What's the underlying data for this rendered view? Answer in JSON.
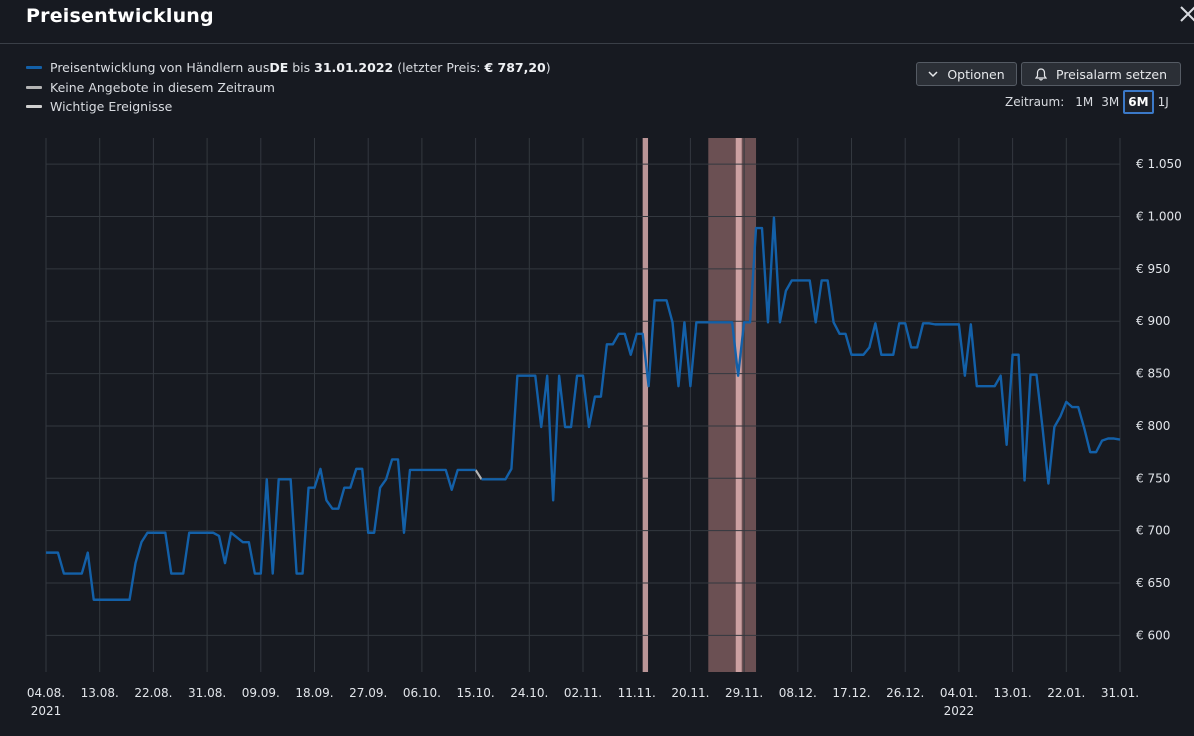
{
  "header": {
    "title": "Preisentwicklung",
    "close_icon": "close-icon"
  },
  "legend": {
    "line_pre": "Preisentwicklung von Händlern aus ",
    "country": "DE",
    "line_mid": " bis ",
    "date": "31.01.2022",
    "line_post": " (letzter Preis: ",
    "last_price": "€ 787,20",
    "line_end": ")",
    "no_offers": "Keine Angebote in diesem Zeitraum",
    "events": "Wichtige Ereignisse"
  },
  "toolbar": {
    "options_label": "Optionen",
    "alarm_label": "Preisalarm setzen"
  },
  "range": {
    "label": "Zeitraum:",
    "options": [
      "1M",
      "3M",
      "6M",
      "1J"
    ],
    "selected": "6M"
  },
  "colors": {
    "line": "#1360a8",
    "no_offers": "#b4b4b4",
    "events": "#d0d0d0",
    "band_light": "#e8b8b8",
    "band_dark": "#7a5a5c",
    "grid": "#33383f"
  },
  "chart_data": {
    "type": "line",
    "y_ticks": [
      "€ 600",
      "€ 650",
      "€ 700",
      "€ 750",
      "€ 800",
      "€ 850",
      "€ 900",
      "€ 950",
      "€ 1.000",
      "€ 1.050"
    ],
    "y_values": [
      600,
      650,
      700,
      750,
      800,
      850,
      900,
      950,
      1000,
      1050
    ],
    "ylim": [
      565,
      1075
    ],
    "x_ticks": [
      "04.08.",
      "13.08.",
      "22.08.",
      "31.08.",
      "09.09.",
      "18.09.",
      "27.09.",
      "06.10.",
      "15.10.",
      "24.10.",
      "02.11.",
      "11.11.",
      "20.11.",
      "29.11.",
      "08.12.",
      "17.12.",
      "26.12.",
      "04.01.",
      "13.01.",
      "22.01.",
      "31.01."
    ],
    "x_tick_dates": [
      "2021-08-04",
      "2021-08-13",
      "2021-08-22",
      "2021-08-31",
      "2021-09-09",
      "2021-09-18",
      "2021-09-27",
      "2021-10-06",
      "2021-10-15",
      "2021-10-24",
      "2021-11-02",
      "2021-11-11",
      "2021-11-20",
      "2021-11-29",
      "2021-12-08",
      "2021-12-17",
      "2021-12-26",
      "2022-01-04",
      "2022-01-13",
      "2022-01-22",
      "2022-01-31"
    ],
    "year_labels": [
      {
        "date": "2021-08-04",
        "label": "2021"
      },
      {
        "date": "2022-01-04",
        "label": "2022"
      }
    ],
    "xlim": [
      "2021-08-04",
      "2022-01-31"
    ],
    "grid": true,
    "series": [
      {
        "name": "Preisentwicklung",
        "points": [
          [
            "2021-08-04",
            679
          ],
          [
            "2021-08-06",
            679
          ],
          [
            "2021-08-07",
            659
          ],
          [
            "2021-08-10",
            659
          ],
          [
            "2021-08-11",
            679
          ],
          [
            "2021-08-12",
            634
          ],
          [
            "2021-08-18",
            634
          ],
          [
            "2021-08-19",
            669
          ],
          [
            "2021-08-20",
            689
          ],
          [
            "2021-08-21",
            698
          ],
          [
            "2021-08-24",
            698
          ],
          [
            "2021-08-25",
            659
          ],
          [
            "2021-08-27",
            659
          ],
          [
            "2021-08-28",
            698
          ],
          [
            "2021-09-01",
            698
          ],
          [
            "2021-09-02",
            695
          ],
          [
            "2021-09-03",
            669
          ],
          [
            "2021-09-04",
            698
          ],
          [
            "2021-09-06",
            689
          ],
          [
            "2021-09-07",
            689
          ],
          [
            "2021-09-08",
            659
          ],
          [
            "2021-09-09",
            659
          ],
          [
            "2021-09-10",
            749
          ],
          [
            "2021-09-11",
            659
          ],
          [
            "2021-09-12",
            749
          ],
          [
            "2021-09-14",
            749
          ],
          [
            "2021-09-15",
            659
          ],
          [
            "2021-09-16",
            659
          ],
          [
            "2021-09-17",
            741
          ],
          [
            "2021-09-18",
            741
          ],
          [
            "2021-09-19",
            759
          ],
          [
            "2021-09-20",
            729
          ],
          [
            "2021-09-21",
            721
          ],
          [
            "2021-09-22",
            721
          ],
          [
            "2021-09-23",
            741
          ],
          [
            "2021-09-24",
            741
          ],
          [
            "2021-09-25",
            759
          ],
          [
            "2021-09-26",
            759
          ],
          [
            "2021-09-27",
            698
          ],
          [
            "2021-09-28",
            698
          ],
          [
            "2021-09-29",
            741
          ],
          [
            "2021-09-30",
            749
          ],
          [
            "2021-10-01",
            768
          ],
          [
            "2021-10-02",
            768
          ],
          [
            "2021-10-03",
            698
          ],
          [
            "2021-10-04",
            758
          ],
          [
            "2021-10-10",
            758
          ],
          [
            "2021-10-11",
            739
          ],
          [
            "2021-10-12",
            758
          ],
          [
            "2021-10-15",
            758
          ]
        ]
      },
      {
        "name": "Preisentwicklung",
        "points": [
          [
            "2021-10-16",
            749
          ],
          [
            "2021-10-20",
            749
          ],
          [
            "2021-10-21",
            759
          ],
          [
            "2021-10-22",
            848
          ],
          [
            "2021-10-25",
            848
          ],
          [
            "2021-10-26",
            799
          ],
          [
            "2021-10-27",
            848
          ],
          [
            "2021-10-28",
            729
          ],
          [
            "2021-10-29",
            848
          ],
          [
            "2021-10-30",
            799
          ],
          [
            "2021-10-31",
            799
          ],
          [
            "2021-11-01",
            848
          ],
          [
            "2021-11-02",
            848
          ],
          [
            "2021-11-03",
            799
          ],
          [
            "2021-11-04",
            828
          ],
          [
            "2021-11-05",
            828
          ],
          [
            "2021-11-06",
            878
          ],
          [
            "2021-11-07",
            878
          ],
          [
            "2021-11-08",
            888
          ],
          [
            "2021-11-09",
            888
          ],
          [
            "2021-11-10",
            868
          ],
          [
            "2021-11-11",
            888
          ],
          [
            "2021-11-12",
            888
          ],
          [
            "2021-11-13",
            838
          ],
          [
            "2021-11-14",
            920
          ],
          [
            "2021-11-16",
            920
          ],
          [
            "2021-11-17",
            899
          ],
          [
            "2021-11-18",
            838
          ],
          [
            "2021-11-19",
            899
          ],
          [
            "2021-11-20",
            838
          ],
          [
            "2021-11-21",
            899
          ],
          [
            "2021-11-22",
            899
          ],
          [
            "2021-11-23",
            899
          ],
          [
            "2021-11-27",
            899
          ],
          [
            "2021-11-28",
            848
          ],
          [
            "2021-11-29",
            899
          ],
          [
            "2021-11-30",
            899
          ],
          [
            "2021-12-01",
            989
          ],
          [
            "2021-12-02",
            989
          ],
          [
            "2021-12-03",
            899
          ],
          [
            "2021-12-04",
            999
          ],
          [
            "2021-12-05",
            899
          ],
          [
            "2021-12-06",
            929
          ],
          [
            "2021-12-07",
            939
          ],
          [
            "2021-12-10",
            939
          ],
          [
            "2021-12-11",
            899
          ],
          [
            "2021-12-12",
            939
          ],
          [
            "2021-12-13",
            939
          ],
          [
            "2021-12-14",
            899
          ],
          [
            "2021-12-15",
            888
          ],
          [
            "2021-12-16",
            888
          ],
          [
            "2021-12-17",
            868
          ],
          [
            "2021-12-19",
            868
          ],
          [
            "2021-12-20",
            875
          ],
          [
            "2021-12-21",
            898
          ],
          [
            "2021-12-22",
            868
          ],
          [
            "2021-12-24",
            868
          ],
          [
            "2021-12-25",
            898
          ],
          [
            "2021-12-26",
            898
          ],
          [
            "2021-12-27",
            875
          ],
          [
            "2021-12-28",
            875
          ],
          [
            "2021-12-29",
            898
          ],
          [
            "2021-12-30",
            898
          ],
          [
            "2021-12-31",
            897
          ],
          [
            "2022-01-04",
            897
          ],
          [
            "2022-01-05",
            848
          ],
          [
            "2022-01-06",
            897
          ],
          [
            "2022-01-07",
            838
          ],
          [
            "2022-01-10",
            838
          ],
          [
            "2022-01-11",
            848
          ],
          [
            "2022-01-12",
            782
          ],
          [
            "2022-01-13",
            868
          ],
          [
            "2022-01-14",
            868
          ],
          [
            "2022-01-15",
            748
          ],
          [
            "2022-01-16",
            849
          ],
          [
            "2022-01-17",
            849
          ],
          [
            "2022-01-18",
            799
          ],
          [
            "2022-01-19",
            745
          ],
          [
            "2022-01-20",
            799
          ],
          [
            "2022-01-21",
            809
          ],
          [
            "2022-01-22",
            823
          ],
          [
            "2022-01-23",
            818
          ],
          [
            "2022-01-24",
            818
          ],
          [
            "2022-01-25",
            798
          ],
          [
            "2022-01-26",
            775
          ],
          [
            "2022-01-27",
            775
          ],
          [
            "2022-01-28",
            786
          ],
          [
            "2022-01-29",
            788
          ],
          [
            "2022-01-30",
            788
          ],
          [
            "2022-01-31",
            787
          ]
        ]
      }
    ],
    "no_offer_segments": [
      [
        [
          "2021-10-15",
          758
        ],
        [
          "2021-10-16",
          749
        ]
      ]
    ],
    "event_bands": [
      {
        "from": "2021-11-12",
        "to": "2021-11-12.9",
        "style": "light"
      },
      {
        "from": "2021-11-23",
        "to": "2021-12-01",
        "style": "dark"
      },
      {
        "from": "2021-11-27.6",
        "to": "2021-11-28.6",
        "style": "light"
      }
    ]
  }
}
